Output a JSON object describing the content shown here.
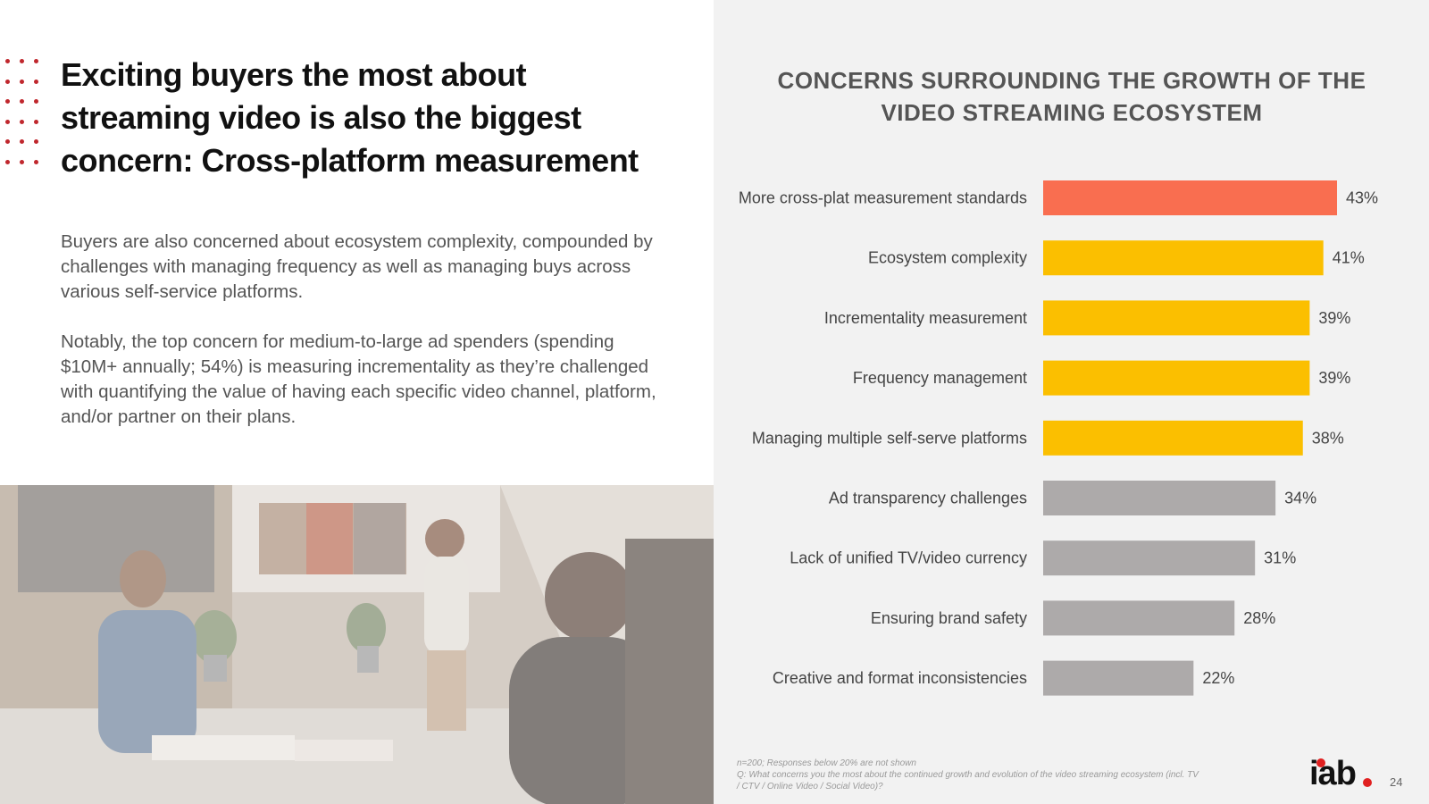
{
  "slide": {
    "title": "Exciting buyers the most about streaming video is also the biggest concern: Cross-platform measurement",
    "paragraphs": [
      "Buyers are also concerned about ecosystem complexity, compounded by challenges with managing frequency as well as managing buys across various self-service platforms.",
      "Notably, the top concern for medium-to-large ad spenders (spending $10M+ annually; 54%) is measuring incrementality as they’re challenged with quantifying the value of having each specific video channel, platform, and/or partner on their plans."
    ],
    "footnote_line1": "n=200; Responses below 20% are not shown",
    "footnote_line2": "Q: What concerns you the most about the continued growth and evolution of the video streaming ecosystem (incl. TV / CTV / Online Video / Social Video)?",
    "logo_text": "iab",
    "page_number": "24",
    "accent_color": "#c0272d"
  },
  "chart_data": {
    "type": "bar",
    "orientation": "horizontal",
    "title": "CONCERNS SURROUNDING THE GROWTH OF THE VIDEO STREAMING ECOSYSTEM",
    "categories": [
      "More cross-plat measurement standards",
      "Ecosystem complexity",
      "Incrementality measurement",
      "Frequency management",
      "Managing multiple self-serve platforms",
      "Ad transparency challenges",
      "Lack of unified TV/video currency",
      "Ensuring brand safety",
      "Creative and format inconsistencies"
    ],
    "values": [
      43,
      41,
      39,
      39,
      38,
      34,
      31,
      28,
      22
    ],
    "value_labels": [
      "43%",
      "41%",
      "39%",
      "39%",
      "38%",
      "34%",
      "31%",
      "28%",
      "22%"
    ],
    "colors": [
      "#f96e50",
      "#fbbf00",
      "#fbbf00",
      "#fbbf00",
      "#fbbf00",
      "#adaaaa",
      "#adaaaa",
      "#adaaaa",
      "#adaaaa"
    ],
    "unit": "%",
    "xlim": [
      0,
      43
    ]
  }
}
